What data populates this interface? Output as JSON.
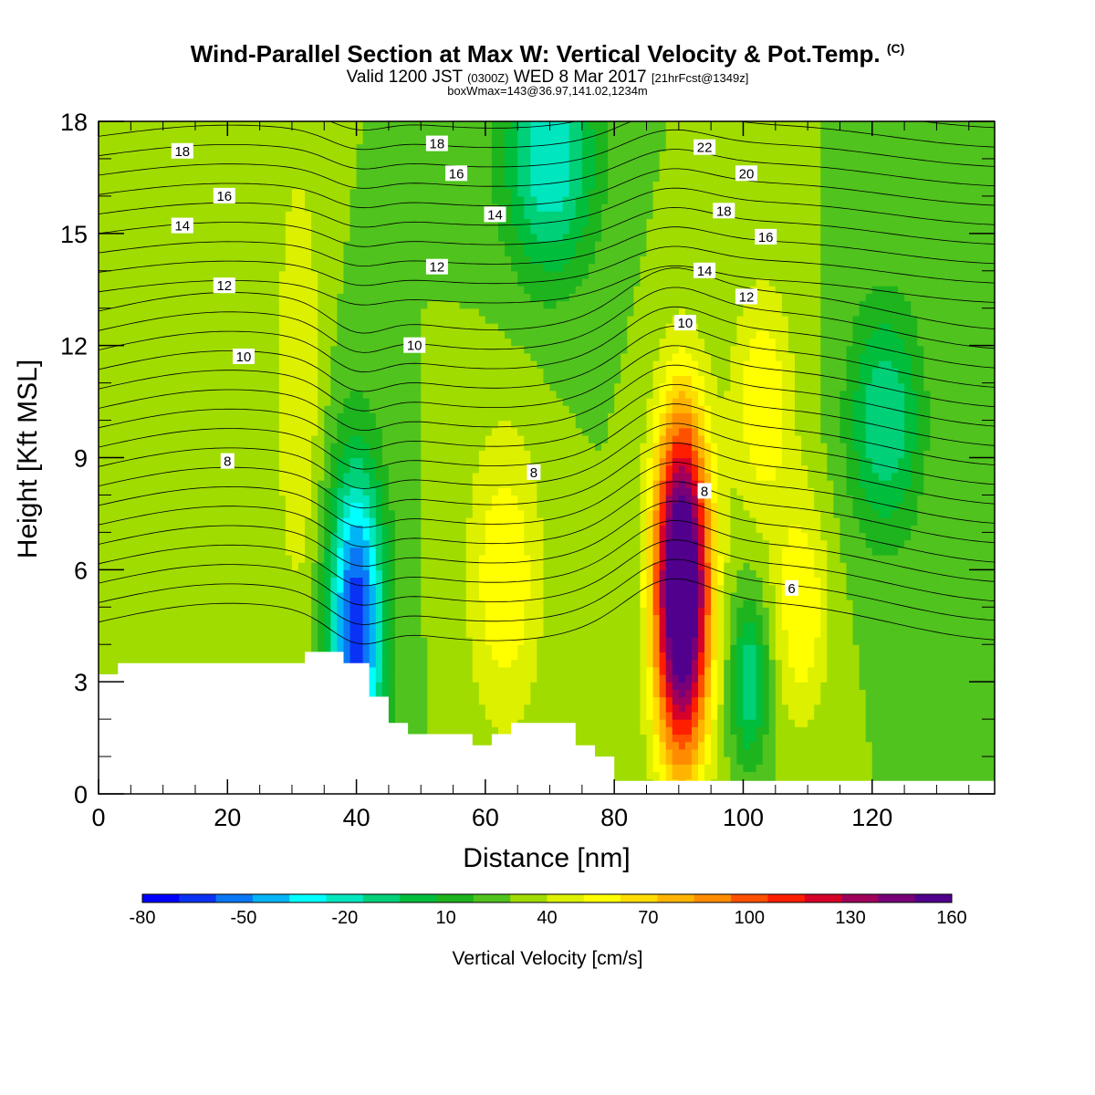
{
  "titles": {
    "main": "Wind-Parallel Section at Max W: Vertical Velocity & Pot.Temp.",
    "copyright": "(C)",
    "valid_pre": "Valid 1200 JST",
    "valid_utc": "(0300Z)",
    "valid_date": "WED 8 Mar 2017",
    "fcst": "[21hrFcst@1349z]",
    "boxinfo": "boxWmax=143@36.97,141.02,1234m"
  },
  "chart_data": {
    "type": "heatmap",
    "title": "Wind-Parallel Section at Max W: Vertical Velocity & Pot.Temp.",
    "xlabel": "Distance [nm]",
    "ylabel": "Height [Kft MSL]",
    "xlim": [
      0,
      139
    ],
    "ylim": [
      0,
      18
    ],
    "x_ticks": [
      0,
      20,
      40,
      60,
      80,
      100,
      120
    ],
    "y_ticks": [
      0,
      3,
      6,
      9,
      12,
      15,
      18
    ],
    "colorbar": {
      "label": "Vertical Velocity [cm/s]",
      "min": -80,
      "max": 160,
      "step": 10,
      "tick_labels": [
        "-80",
        "-50",
        "-20",
        "10",
        "40",
        "70",
        "100",
        "130",
        "160"
      ],
      "colors": [
        "#0000ff",
        "#0a32f5",
        "#0a78f5",
        "#00b4f5",
        "#00ffff",
        "#00e6be",
        "#00d078",
        "#00be3c",
        "#1eb41e",
        "#50c31e",
        "#a0dc00",
        "#dcf000",
        "#ffff00",
        "#ffdc00",
        "#ffb400",
        "#ff8c00",
        "#ff5000",
        "#ff1e00",
        "#d70028",
        "#a0005a",
        "#780078",
        "#50008c"
      ]
    },
    "terrain_profile": [
      [
        0,
        3.2
      ],
      [
        3,
        3.2
      ],
      [
        3,
        3.5
      ],
      [
        32,
        3.5
      ],
      [
        32,
        3.8
      ],
      [
        38,
        3.8
      ],
      [
        38,
        3.5
      ],
      [
        42,
        3.5
      ],
      [
        42,
        2.6
      ],
      [
        45,
        2.6
      ],
      [
        45,
        1.9
      ],
      [
        48,
        1.9
      ],
      [
        48,
        1.6
      ],
      [
        58,
        1.6
      ],
      [
        58,
        1.3
      ],
      [
        61,
        1.3
      ],
      [
        61,
        1.6
      ],
      [
        64,
        1.6
      ],
      [
        64,
        1.9
      ],
      [
        74,
        1.9
      ],
      [
        74,
        1.3
      ],
      [
        77,
        1.3
      ],
      [
        77,
        1.0
      ],
      [
        80,
        1.0
      ],
      [
        80,
        0.35
      ],
      [
        139,
        0.35
      ]
    ],
    "velocity_features": [
      {
        "x": 90.5,
        "y": 5.5,
        "value": 160
      },
      {
        "x": 40,
        "y": 4.5,
        "value": -80
      },
      {
        "x": 63,
        "y": 5.8,
        "value": 40
      },
      {
        "x": 103,
        "y": 10.5,
        "value": 40
      },
      {
        "x": 109,
        "y": 5,
        "value": 40
      },
      {
        "x": 70,
        "y": 17,
        "value": -40
      },
      {
        "x": 122,
        "y": 10,
        "value": -30
      },
      {
        "x": 101,
        "y": 3,
        "value": -30
      },
      {
        "x": 31,
        "y": 11,
        "value": 30
      }
    ],
    "theta_contour_labels": [
      {
        "x": 13,
        "y": 17.2,
        "text": "18"
      },
      {
        "x": 19.5,
        "y": 16.0,
        "text": "16"
      },
      {
        "x": 13,
        "y": 15.2,
        "text": "14"
      },
      {
        "x": 19.5,
        "y": 13.6,
        "text": "12"
      },
      {
        "x": 22.5,
        "y": 11.7,
        "text": "10"
      },
      {
        "x": 20,
        "y": 8.9,
        "text": "8"
      },
      {
        "x": 52.5,
        "y": 17.4,
        "text": "18"
      },
      {
        "x": 55.5,
        "y": 16.6,
        "text": "16"
      },
      {
        "x": 61.5,
        "y": 15.5,
        "text": "14"
      },
      {
        "x": 52.5,
        "y": 14.1,
        "text": "12"
      },
      {
        "x": 49,
        "y": 12.0,
        "text": "10"
      },
      {
        "x": 67.5,
        "y": 8.6,
        "text": "8"
      },
      {
        "x": 94,
        "y": 17.3,
        "text": "22"
      },
      {
        "x": 100.5,
        "y": 16.6,
        "text": "20"
      },
      {
        "x": 97,
        "y": 15.6,
        "text": "18"
      },
      {
        "x": 103.5,
        "y": 14.9,
        "text": "16"
      },
      {
        "x": 94,
        "y": 14.0,
        "text": "14"
      },
      {
        "x": 100.5,
        "y": 13.3,
        "text": "12"
      },
      {
        "x": 91,
        "y": 12.6,
        "text": "10"
      },
      {
        "x": 94,
        "y": 8.1,
        "text": "8"
      },
      {
        "x": 107.5,
        "y": 5.5,
        "text": "6"
      }
    ]
  }
}
